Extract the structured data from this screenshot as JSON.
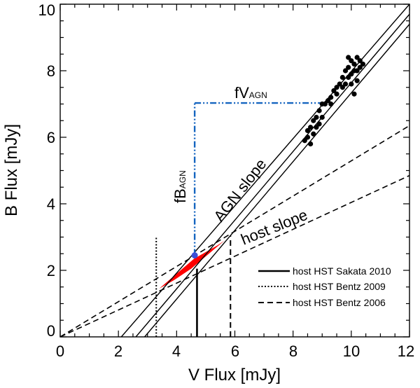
{
  "chart_data": {
    "type": "scatter",
    "xlabel": "V Flux [mJy]",
    "ylabel": "B Flux [mJy]",
    "xlim": [
      0,
      12
    ],
    "ylim": [
      0,
      10
    ],
    "xticks": [
      "0",
      "2",
      "4",
      "6",
      "8",
      "10",
      "12"
    ],
    "yticks": [
      "0",
      "2",
      "4",
      "6",
      "8",
      "10"
    ],
    "points": [
      [
        8.4,
        5.9
      ],
      [
        8.5,
        6.2
      ],
      [
        8.5,
        6.0
      ],
      [
        8.6,
        6.3
      ],
      [
        8.6,
        5.8
      ],
      [
        8.7,
        6.5
      ],
      [
        8.7,
        6.1
      ],
      [
        8.8,
        6.6
      ],
      [
        8.8,
        6.3
      ],
      [
        8.9,
        6.8
      ],
      [
        8.9,
        6.4
      ],
      [
        9.0,
        7.0
      ],
      [
        9.0,
        6.6
      ],
      [
        9.1,
        7.0
      ],
      [
        9.2,
        7.1
      ],
      [
        9.3,
        7.2
      ],
      [
        9.3,
        7.0
      ],
      [
        9.4,
        7.4
      ],
      [
        9.5,
        7.3
      ],
      [
        9.5,
        7.5
      ],
      [
        9.6,
        7.6
      ],
      [
        9.7,
        7.5
      ],
      [
        9.7,
        7.8
      ],
      [
        9.8,
        7.6
      ],
      [
        9.8,
        8.0
      ],
      [
        9.9,
        7.8
      ],
      [
        9.9,
        8.1
      ],
      [
        10.0,
        7.9
      ],
      [
        10.0,
        8.3
      ],
      [
        10.1,
        8.0
      ],
      [
        10.1,
        8.2
      ],
      [
        10.2,
        8.4
      ],
      [
        10.2,
        7.7
      ],
      [
        10.3,
        8.1
      ],
      [
        10.3,
        8.3
      ],
      [
        10.1,
        7.3
      ],
      [
        10.0,
        7.6
      ],
      [
        9.9,
        8.4
      ],
      [
        10.2,
        8.0
      ],
      [
        10.4,
        8.2
      ]
    ],
    "agn_slope_lines": [
      {
        "x": [
          2.1,
          12.0
        ],
        "y": [
          0,
          10.0
        ]
      },
      {
        "x": [
          2.6,
          12.0
        ],
        "y": [
          0,
          9.7
        ]
      },
      {
        "x": [
          2.9,
          12.0
        ],
        "y": [
          0,
          9.4
        ]
      }
    ],
    "host_slope_lines": [
      {
        "x": [
          0,
          12.0
        ],
        "y": [
          0,
          6.35
        ]
      },
      {
        "x": [
          0,
          12.0
        ],
        "y": [
          0,
          4.85
        ]
      }
    ],
    "host_region": [
      [
        3.4,
        1.45
      ],
      [
        4.6,
        2.35
      ],
      [
        5.4,
        2.75
      ],
      [
        5.65,
        2.9
      ],
      [
        4.5,
        2.05
      ],
      [
        3.9,
        1.7
      ]
    ],
    "host_point": {
      "x": 4.62,
      "y": 2.45
    },
    "fV_line": {
      "x0": 4.62,
      "x1": 9.1,
      "y": 7.03
    },
    "fB_line": {
      "x": 4.62,
      "y0": 2.45,
      "y1": 7.03
    },
    "host_markers": [
      {
        "style": "solid",
        "x": 4.7,
        "y0": 0,
        "y1": 2.05
      },
      {
        "style": "dotted",
        "x": 3.3,
        "y0": 0,
        "y1": 3.0
      },
      {
        "style": "dashed",
        "x": 5.85,
        "y0": 0,
        "y1": 3.05
      }
    ],
    "annotations": {
      "fV_main": "fV",
      "fV_sub": "AGN",
      "fB_main": "fB",
      "fB_sub": "AGN",
      "agn_slope": "AGN slope",
      "host_slope": "host slope"
    },
    "legend": {
      "position": "bottom-right",
      "entries": [
        {
          "style": "solid",
          "label": "host HST Sakata 2010"
        },
        {
          "style": "dotted",
          "label": "host HST Bentz 2009"
        },
        {
          "style": "dashed",
          "label": "host HST Bentz 2006"
        }
      ]
    },
    "colors": {
      "axes": "#000000",
      "points": "#000000",
      "region": "#ff0000",
      "host_point": "#3b4fd6",
      "fV_fB": "#1565c0"
    }
  }
}
